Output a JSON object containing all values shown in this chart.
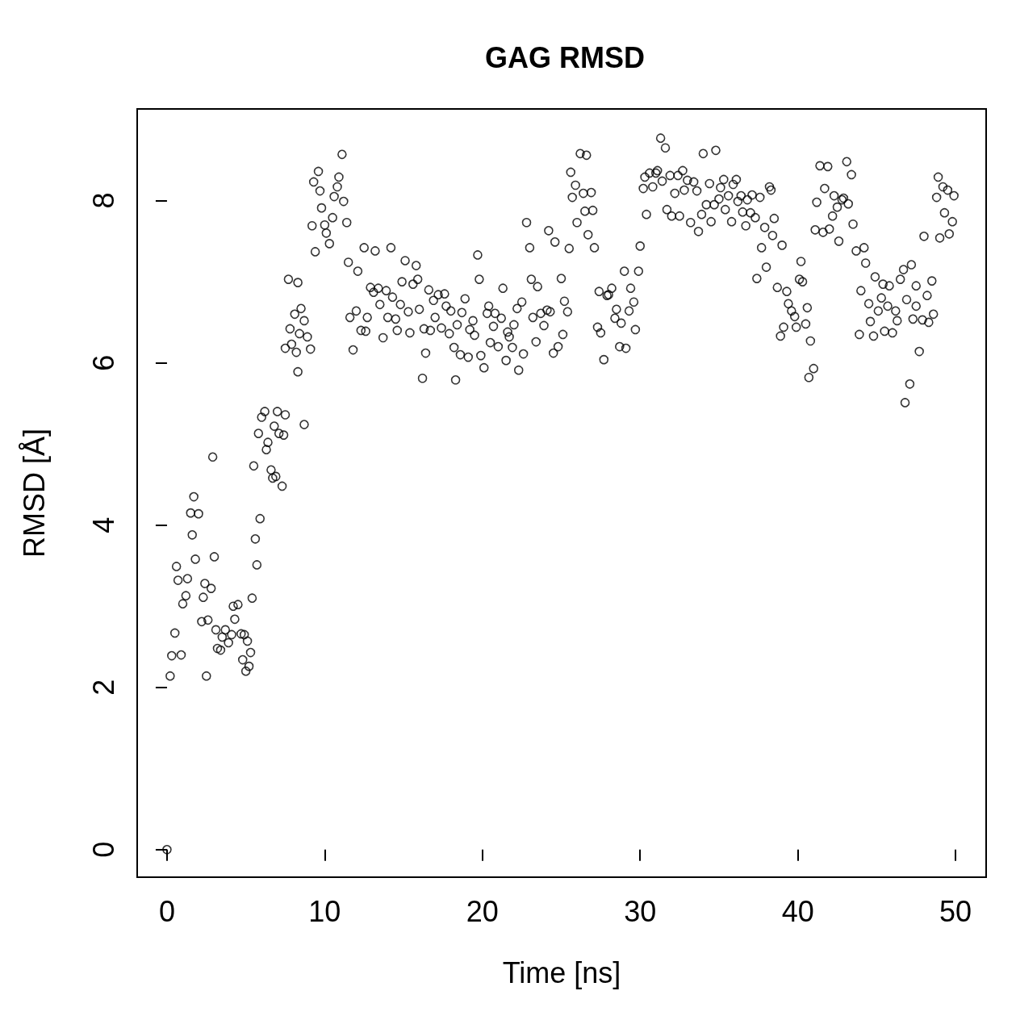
{
  "chart_data": {
    "type": "scatter",
    "title": "GAG RMSD",
    "xlabel": "Time [ns]",
    "ylabel": "RMSD [Å]",
    "xlim": [
      -1.89,
      51.94
    ],
    "xticks": [
      0,
      10,
      20,
      30,
      40,
      50
    ],
    "ylim": [
      -0.34,
      9.13
    ],
    "yticks": [
      0,
      2,
      4,
      6,
      8
    ],
    "marker": "circle",
    "grid": false,
    "series": [
      {
        "color": "#000000",
        "x": [
          0,
          0.2,
          0.3,
          0.5,
          0.6,
          0.7,
          0.9,
          1.0,
          1.2,
          1.3,
          1.5,
          1.6,
          1.7,
          1.8,
          2.0,
          2.2,
          2.3,
          2.4,
          2.5,
          2.6,
          2.8,
          2.9,
          3.0,
          3.1,
          3.2,
          3.4,
          3.5,
          3.7,
          3.9,
          4.1,
          4.2,
          4.3,
          4.5,
          4.7,
          4.8,
          4.9,
          5.0,
          5.1,
          5.2,
          5.3,
          5.4,
          5.5,
          5.6,
          5.7,
          5.8,
          5.9,
          6.0,
          6.2,
          6.3,
          6.4,
          6.6,
          6.7,
          6.8,
          6.9,
          7.0,
          7.1,
          7.3,
          7.4,
          7.5,
          7.5,
          7.7,
          7.8,
          7.9,
          8.1,
          8.2,
          8.3,
          8.3,
          8.4,
          8.5,
          8.7,
          8.7,
          8.9,
          9.1,
          9.2,
          9.3,
          9.4,
          9.6,
          9.7,
          9.8,
          10.0,
          10.1,
          10.3,
          10.5,
          10.6,
          10.8,
          10.9,
          11.1,
          11.2,
          11.4,
          11.5,
          11.6,
          11.8,
          12.0,
          12.1,
          12.3,
          12.5,
          12.6,
          12.7,
          12.9,
          13.1,
          13.2,
          13.4,
          13.5,
          13.7,
          13.9,
          14.0,
          14.2,
          14.3,
          14.5,
          14.6,
          14.8,
          14.9,
          15.1,
          15.3,
          15.4,
          15.6,
          15.8,
          15.9,
          16.0,
          16.2,
          16.3,
          16.4,
          16.6,
          16.7,
          16.9,
          17.0,
          17.2,
          17.4,
          17.6,
          17.7,
          17.9,
          18.0,
          18.2,
          18.3,
          18.4,
          18.6,
          18.7,
          18.9,
          19.1,
          19.2,
          19.4,
          19.5,
          19.7,
          19.8,
          19.9,
          20.1,
          20.3,
          20.4,
          20.5,
          20.7,
          20.8,
          21.0,
          21.2,
          21.3,
          21.5,
          21.6,
          21.7,
          21.9,
          22.0,
          22.2,
          22.3,
          22.5,
          22.6,
          22.8,
          23.0,
          23.1,
          23.2,
          23.4,
          23.5,
          23.7,
          23.9,
          24.1,
          24.2,
          24.3,
          24.5,
          24.6,
          24.8,
          25.0,
          25.1,
          25.2,
          25.4,
          25.5,
          25.6,
          25.7,
          25.9,
          26.0,
          26.2,
          26.4,
          26.5,
          26.6,
          26.7,
          26.9,
          27.0,
          27.1,
          27.3,
          27.4,
          27.5,
          27.7,
          27.9,
          28.0,
          28.2,
          28.4,
          28.5,
          28.7,
          28.8,
          29.0,
          29.1,
          29.3,
          29.4,
          29.6,
          29.7,
          29.9,
          30.0,
          30.2,
          30.3,
          30.4,
          30.6,
          30.8,
          31.0,
          31.1,
          31.3,
          31.4,
          31.6,
          31.7,
          31.9,
          32.0,
          32.2,
          32.4,
          32.5,
          32.7,
          32.8,
          33.0,
          33.2,
          33.4,
          33.6,
          33.7,
          33.9,
          34.0,
          34.2,
          34.4,
          34.5,
          34.7,
          34.8,
          35.0,
          35.1,
          35.3,
          35.4,
          35.6,
          35.8,
          35.9,
          36.1,
          36.2,
          36.4,
          36.5,
          36.7,
          36.8,
          37.0,
          37.1,
          37.3,
          37.4,
          37.6,
          37.7,
          37.9,
          38.0,
          38.2,
          38.3,
          38.4,
          38.5,
          38.7,
          38.9,
          39.0,
          39.1,
          39.3,
          39.4,
          39.6,
          39.8,
          39.9,
          40.1,
          40.2,
          40.3,
          40.5,
          40.6,
          40.7,
          40.8,
          41.0,
          41.1,
          41.2,
          41.4,
          41.6,
          41.7,
          41.9,
          42.0,
          42.2,
          42.3,
          42.5,
          42.6,
          42.8,
          42.9,
          43.1,
          43.2,
          43.4,
          43.5,
          43.7,
          43.9,
          44.0,
          44.2,
          44.3,
          44.5,
          44.6,
          44.8,
          44.9,
          45.1,
          45.3,
          45.4,
          45.5,
          45.7,
          45.8,
          46.0,
          46.2,
          46.3,
          46.5,
          46.7,
          46.8,
          46.9,
          47.1,
          47.2,
          47.3,
          47.5,
          47.5,
          47.7,
          47.9,
          48.0,
          48.2,
          48.3,
          48.5,
          48.6,
          48.8,
          48.9,
          49.0,
          49.2,
          49.3,
          49.5,
          49.6,
          49.8,
          49.9
        ],
        "values": [
          0,
          2.14,
          2.39,
          2.67,
          3.49,
          3.32,
          2.4,
          3.03,
          3.13,
          3.34,
          4.15,
          3.88,
          4.35,
          3.58,
          4.14,
          2.81,
          3.11,
          3.28,
          2.14,
          2.83,
          3.22,
          4.84,
          3.61,
          2.71,
          2.48,
          2.46,
          2.62,
          2.71,
          2.55,
          2.65,
          3.0,
          2.84,
          3.02,
          2.66,
          2.34,
          2.65,
          2.2,
          2.57,
          2.26,
          2.43,
          3.1,
          4.73,
          3.83,
          3.51,
          5.13,
          4.08,
          5.33,
          5.4,
          4.93,
          5.02,
          4.68,
          4.58,
          5.22,
          4.6,
          5.4,
          5.13,
          4.48,
          5.11,
          5.36,
          6.18,
          7.03,
          6.42,
          6.23,
          6.6,
          6.13,
          5.89,
          6.99,
          6.36,
          6.67,
          6.52,
          5.24,
          6.32,
          6.17,
          7.69,
          8.23,
          7.37,
          8.36,
          8.12,
          7.91,
          7.7,
          7.6,
          7.47,
          7.79,
          8.05,
          8.17,
          8.29,
          8.57,
          7.99,
          7.73,
          7.24,
          6.56,
          6.16,
          6.64,
          7.13,
          6.4,
          7.42,
          6.39,
          6.56,
          6.93,
          6.87,
          7.38,
          6.92,
          6.72,
          6.31,
          6.89,
          6.56,
          7.42,
          6.81,
          6.54,
          6.4,
          6.72,
          7.0,
          7.26,
          6.63,
          6.37,
          6.97,
          7.2,
          7.03,
          6.66,
          5.81,
          6.42,
          6.12,
          6.9,
          6.4,
          6.77,
          6.56,
          6.84,
          6.43,
          6.85,
          6.7,
          6.36,
          6.64,
          6.19,
          5.79,
          6.47,
          6.1,
          6.62,
          6.79,
          6.07,
          6.41,
          6.52,
          6.34,
          7.33,
          7.03,
          6.09,
          5.94,
          6.61,
          6.7,
          6.25,
          6.45,
          6.61,
          6.2,
          6.55,
          6.92,
          6.03,
          6.38,
          6.32,
          6.19,
          6.47,
          6.67,
          5.91,
          6.75,
          6.11,
          7.73,
          7.42,
          7.03,
          6.56,
          6.26,
          6.94,
          6.61,
          6.46,
          6.65,
          7.63,
          6.63,
          6.12,
          7.49,
          6.2,
          7.04,
          6.35,
          6.76,
          6.63,
          7.41,
          8.35,
          8.04,
          8.19,
          7.73,
          8.58,
          8.09,
          7.87,
          8.56,
          7.58,
          8.1,
          7.88,
          7.42,
          6.44,
          6.88,
          6.37,
          6.04,
          6.83,
          6.84,
          6.92,
          6.55,
          6.66,
          6.2,
          6.49,
          7.13,
          6.18,
          6.64,
          6.92,
          6.75,
          6.41,
          7.13,
          7.44,
          8.15,
          8.29,
          7.83,
          8.34,
          8.17,
          8.34,
          8.37,
          8.77,
          8.24,
          8.65,
          7.89,
          8.31,
          7.81,
          8.09,
          8.31,
          7.81,
          8.37,
          8.13,
          8.25,
          7.73,
          8.23,
          8.12,
          7.62,
          7.83,
          8.58,
          7.95,
          8.21,
          7.74,
          7.95,
          8.62,
          8.02,
          8.16,
          8.26,
          7.89,
          8.06,
          7.74,
          8.2,
          8.26,
          7.99,
          8.06,
          7.86,
          7.69,
          8.01,
          7.85,
          8.07,
          7.79,
          7.04,
          8.04,
          7.42,
          7.67,
          7.18,
          8.17,
          8.13,
          7.57,
          7.78,
          6.93,
          6.33,
          7.45,
          6.44,
          6.88,
          6.73,
          6.64,
          6.57,
          6.44,
          7.03,
          7.25,
          7.0,
          6.48,
          6.68,
          5.82,
          6.27,
          5.93,
          7.64,
          7.98,
          8.43,
          7.61,
          8.15,
          8.42,
          7.65,
          7.81,
          8.06,
          7.92,
          7.5,
          8.01,
          8.03,
          8.48,
          7.96,
          8.32,
          7.71,
          7.38,
          6.35,
          6.89,
          7.42,
          7.23,
          6.73,
          6.51,
          6.33,
          7.06,
          6.64,
          6.8,
          6.97,
          6.39,
          6.7,
          6.95,
          6.37,
          6.64,
          6.52,
          7.03,
          7.15,
          5.51,
          6.78,
          5.74,
          7.21,
          6.54,
          6.7,
          6.95,
          6.14,
          6.53,
          7.56,
          6.83,
          6.5,
          7.01,
          6.6,
          8.04,
          8.29,
          7.54,
          8.17,
          7.85,
          8.13,
          7.59,
          7.74,
          8.06
        ]
      }
    ]
  }
}
